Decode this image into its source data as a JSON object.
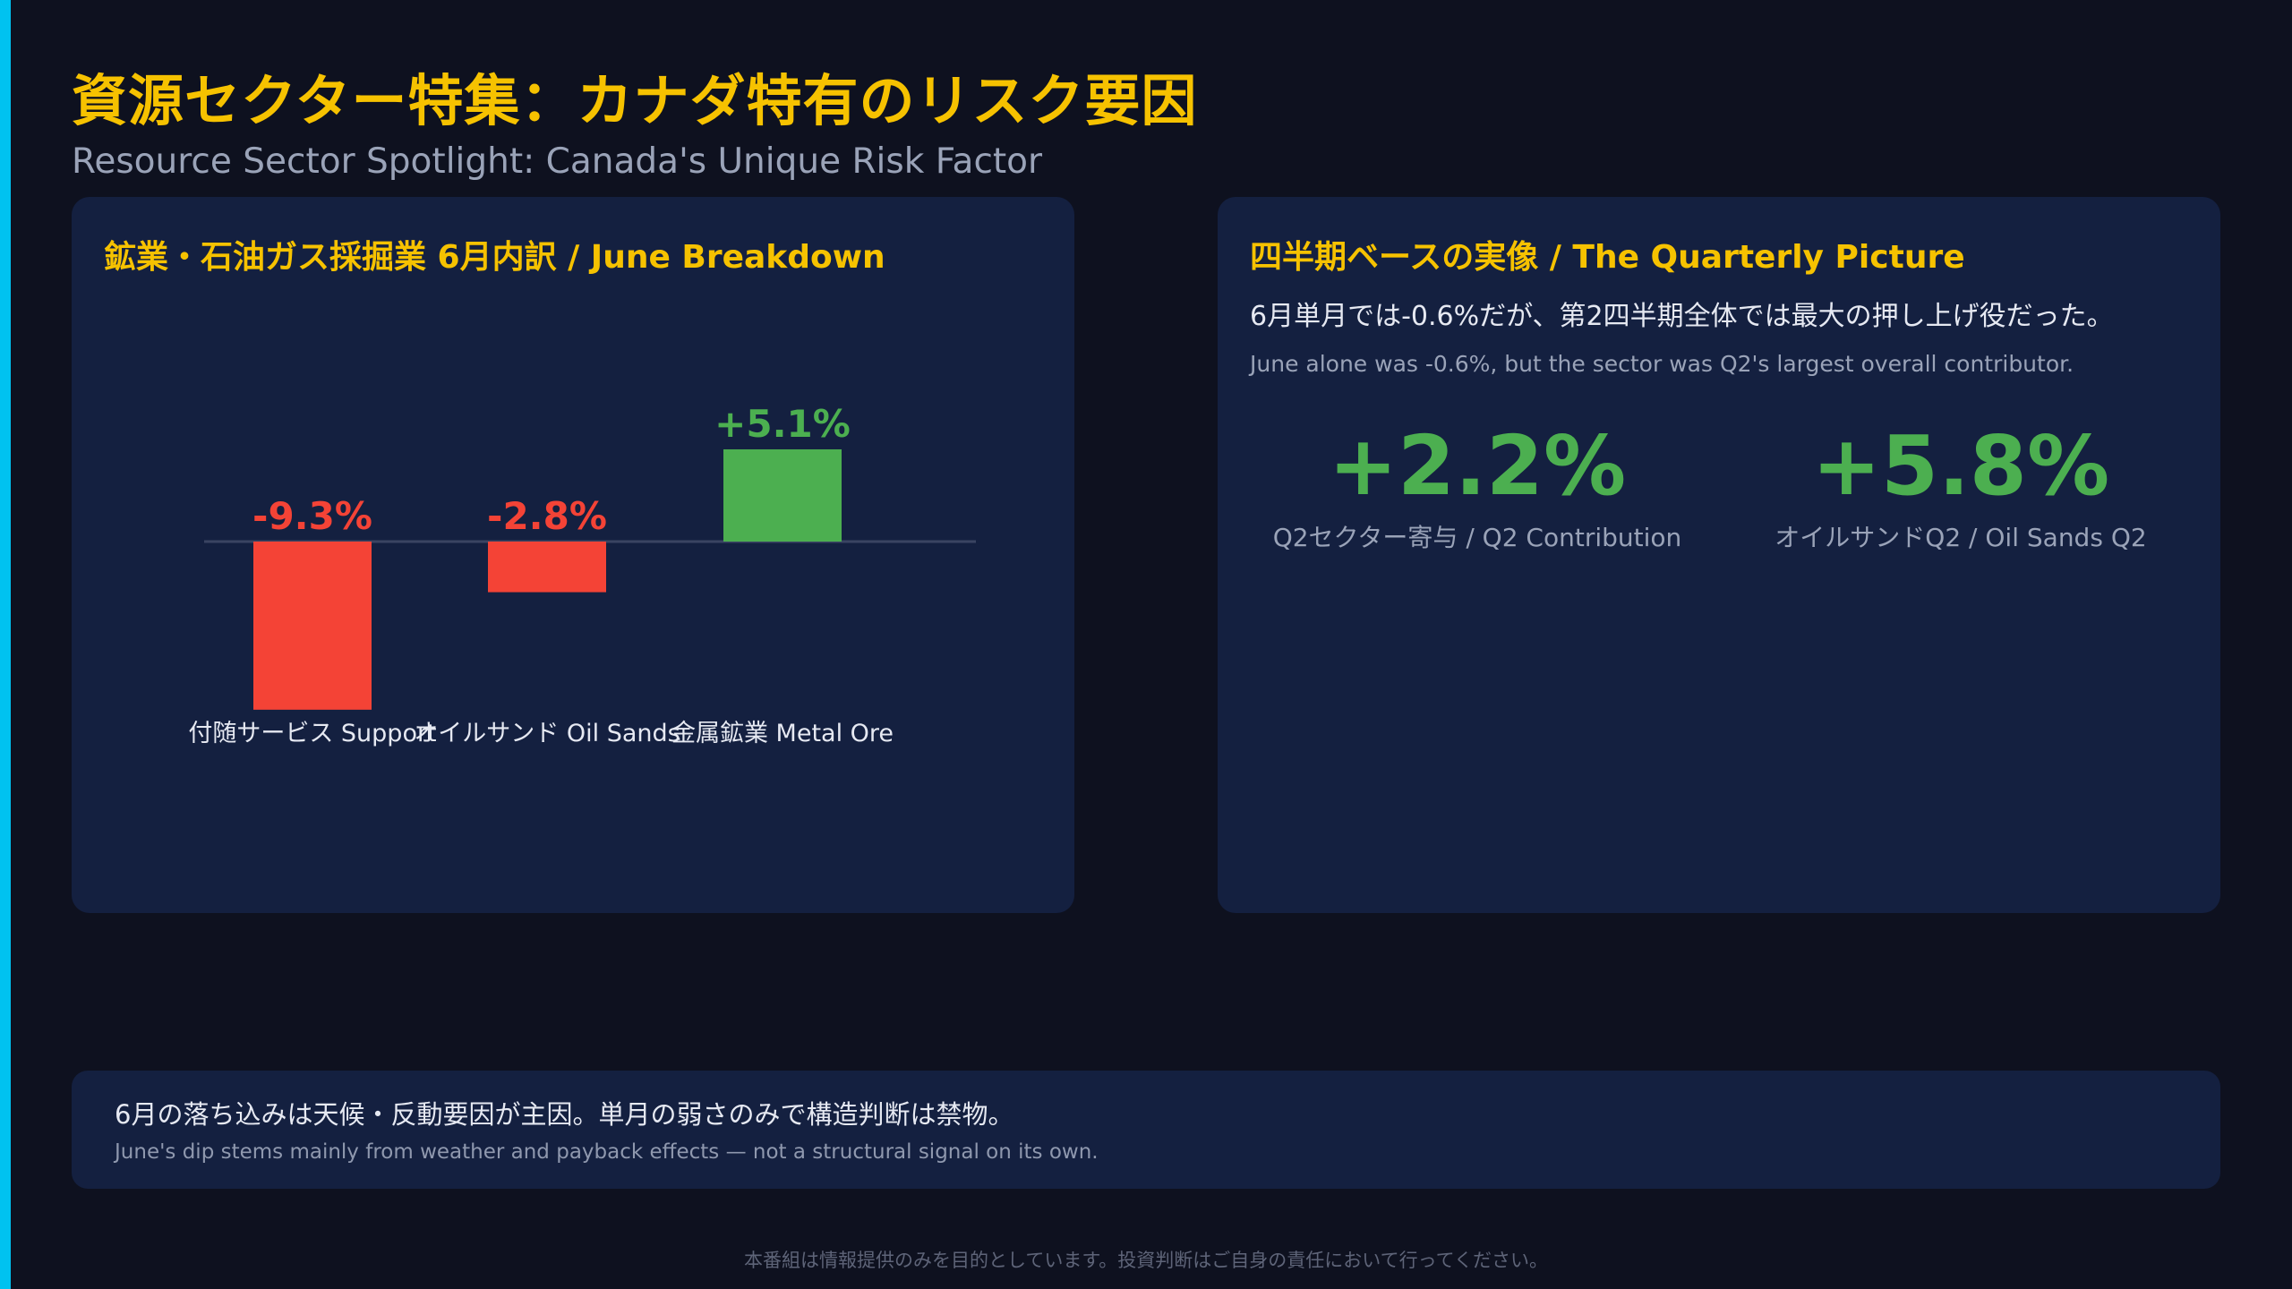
{
  "header": {
    "title": "資源セクター特集：カナダ特有のリスク要因",
    "subtitle": "Resource Sector Spotlight: Canada's Unique Risk Factor"
  },
  "left_panel": {
    "title": "鉱業・石油ガス採掘業 6月内訳 / June Breakdown"
  },
  "right_panel": {
    "title": "四半期ベースの実像 / The Quarterly Picture",
    "lead_ja": "6月単月では-0.6%だが、第2四半期全体では最大の押し上げ役だった。",
    "lead_en": "June alone was -0.6%, but the sector was Q2's largest overall contributor.",
    "stats": [
      {
        "value": "+2.2%",
        "label": "Q2セクター寄与 / Q2 Contribution"
      },
      {
        "value": "+5.8%",
        "label": "オイルサンドQ2 / Oil Sands Q2"
      }
    ]
  },
  "note": {
    "ja": "6月の落ち込みは天候・反動要因が主因。単月の弱さのみで構造判断は禁物。",
    "en": "June's dip stems mainly from weather and payback effects — not a structural signal on its own."
  },
  "footer": {
    "disclaimer": "本番組は情報提供のみを目的としています。投資判断はご自身の責任において行ってください。"
  },
  "chart_data": {
    "type": "bar",
    "categories": [
      "付随サービス Support",
      "オイルサンド Oil Sands",
      "金属鉱業 Metal Ore"
    ],
    "values": [
      -9.3,
      -2.8,
      5.1
    ],
    "value_labels": [
      "-9.3%",
      "-2.8%",
      "+5.1%"
    ],
    "colors": {
      "negative": "#f44336",
      "positive": "#4caf50"
    },
    "ylim": [
      -9.3,
      5.1
    ],
    "grid": false
  },
  "colors": {
    "accent": "#00c2f0",
    "title": "#f6c200",
    "panel": "#142040",
    "background": "#0e111f"
  }
}
